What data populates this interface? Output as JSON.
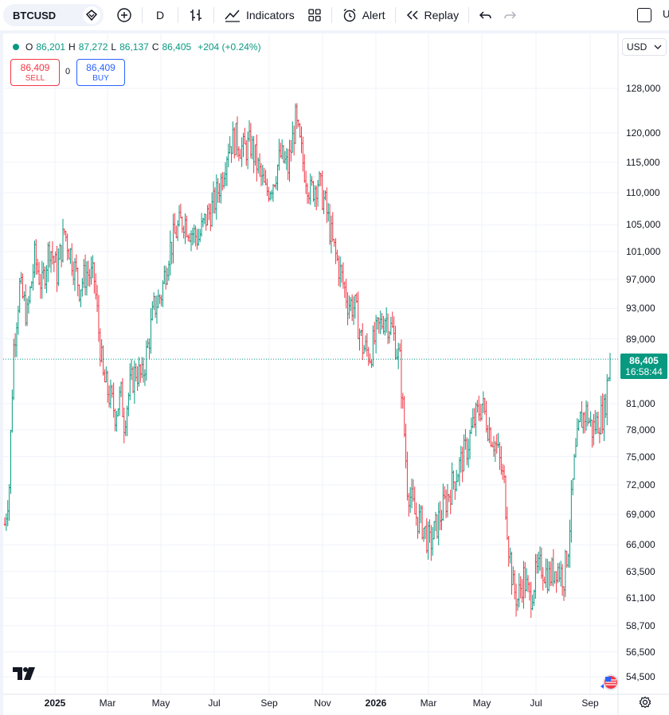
{
  "toolbar": {
    "symbol": "BTCUSD",
    "interval": "D",
    "indicators_label": "Indicators",
    "alert_label": "Alert",
    "replay_label": "Replay",
    "corner_letter": "U"
  },
  "legend": {
    "o_label": "O",
    "o_value": "86,201",
    "h_label": "H",
    "h_value": "87,272",
    "l_label": "L",
    "l_value": "86,137",
    "c_label": "C",
    "c_value": "86,405",
    "change": "+204 (+0.24%)"
  },
  "trade": {
    "sell_price": "86,409",
    "sell_label": "SELL",
    "spread": "0",
    "buy_price": "86,409",
    "buy_label": "BUY"
  },
  "currency": "USD",
  "price_tag": {
    "price": "86,405",
    "countdown": "16:58:44"
  },
  "colors": {
    "up": "#089981",
    "down": "#f23645",
    "accent": "#2962ff"
  },
  "y_axis_labels": [
    "128,000",
    "120,000",
    "115,000",
    "110,000",
    "105,000",
    "101,000",
    "97,000",
    "93,000",
    "89,000",
    "81,000",
    "78,000",
    "75,000",
    "72,000",
    "69,000",
    "66,000",
    "63,500",
    "61,100",
    "58,700",
    "56,500",
    "54,500"
  ],
  "x_axis_labels": [
    "2025",
    "Mar",
    "May",
    "Jul",
    "Sep",
    "Nov",
    "2026",
    "Mar",
    "May",
    "Jul",
    "Sep"
  ],
  "chart_data": {
    "type": "candlestick",
    "symbol": "BTCUSD",
    "interval": "D",
    "scale": "log",
    "last_price": 86405,
    "y_ticks": [
      128000,
      120000,
      115000,
      110000,
      105000,
      101000,
      97000,
      93000,
      89000,
      81000,
      78000,
      75000,
      72000,
      69000,
      66000,
      63500,
      61100,
      58700,
      56500,
      54500
    ],
    "x_ticks": [
      "2025",
      "Mar",
      "May",
      "Jul",
      "Sep",
      "Nov",
      "2026",
      "Mar",
      "May",
      "Jul",
      "Sep"
    ],
    "path_points": [
      [
        0,
        68000
      ],
      [
        3,
        72000
      ],
      [
        6,
        88000
      ],
      [
        10,
        96000
      ],
      [
        15,
        92000
      ],
      [
        20,
        100000
      ],
      [
        25,
        96000
      ],
      [
        30,
        102000
      ],
      [
        35,
        98000
      ],
      [
        40,
        104000
      ],
      [
        45,
        100000
      ],
      [
        50,
        96000
      ],
      [
        55,
        98000
      ],
      [
        60,
        97000
      ],
      [
        63,
        90000
      ],
      [
        66,
        84000
      ],
      [
        70,
        82000
      ],
      [
        74,
        80000
      ],
      [
        78,
        82000
      ],
      [
        80,
        79000
      ],
      [
        84,
        83000
      ],
      [
        88,
        85000
      ],
      [
        92,
        84000
      ],
      [
        96,
        88000
      ],
      [
        100,
        93000
      ],
      [
        105,
        95000
      ],
      [
        110,
        101000
      ],
      [
        115,
        104000
      ],
      [
        120,
        106000
      ],
      [
        125,
        104000
      ],
      [
        130,
        103000
      ],
      [
        135,
        106000
      ],
      [
        140,
        108000
      ],
      [
        145,
        112000
      ],
      [
        150,
        118000
      ],
      [
        155,
        119000
      ],
      [
        160,
        117000
      ],
      [
        165,
        118000
      ],
      [
        170,
        114000
      ],
      [
        175,
        110000
      ],
      [
        180,
        112000
      ],
      [
        185,
        116000
      ],
      [
        190,
        114000
      ],
      [
        195,
        122000
      ],
      [
        200,
        115000
      ],
      [
        205,
        110000
      ],
      [
        210,
        112000
      ],
      [
        215,
        108000
      ],
      [
        220,
        102000
      ],
      [
        225,
        98000
      ],
      [
        230,
        94000
      ],
      [
        235,
        93000
      ],
      [
        240,
        88000
      ],
      [
        245,
        87000
      ],
      [
        250,
        90000
      ],
      [
        255,
        92000
      ],
      [
        260,
        90000
      ],
      [
        265,
        86000
      ],
      [
        270,
        72000
      ],
      [
        275,
        69000
      ],
      [
        280,
        68000
      ],
      [
        285,
        66000
      ],
      [
        290,
        68000
      ],
      [
        295,
        70000
      ],
      [
        300,
        72000
      ],
      [
        305,
        74000
      ],
      [
        310,
        76000
      ],
      [
        315,
        79000
      ],
      [
        320,
        81000
      ],
      [
        325,
        78000
      ],
      [
        330,
        76000
      ],
      [
        335,
        72000
      ],
      [
        338,
        66000
      ],
      [
        341,
        62000
      ],
      [
        344,
        61000
      ],
      [
        348,
        63000
      ],
      [
        352,
        61000
      ],
      [
        356,
        63000
      ],
      [
        360,
        64000
      ],
      [
        365,
        63000
      ],
      [
        370,
        64000
      ],
      [
        375,
        63000
      ],
      [
        378,
        66000
      ],
      [
        382,
        74000
      ],
      [
        386,
        79000
      ],
      [
        390,
        80000
      ],
      [
        394,
        78000
      ],
      [
        398,
        79000
      ],
      [
        402,
        80000
      ],
      [
        406,
        86405
      ]
    ]
  }
}
